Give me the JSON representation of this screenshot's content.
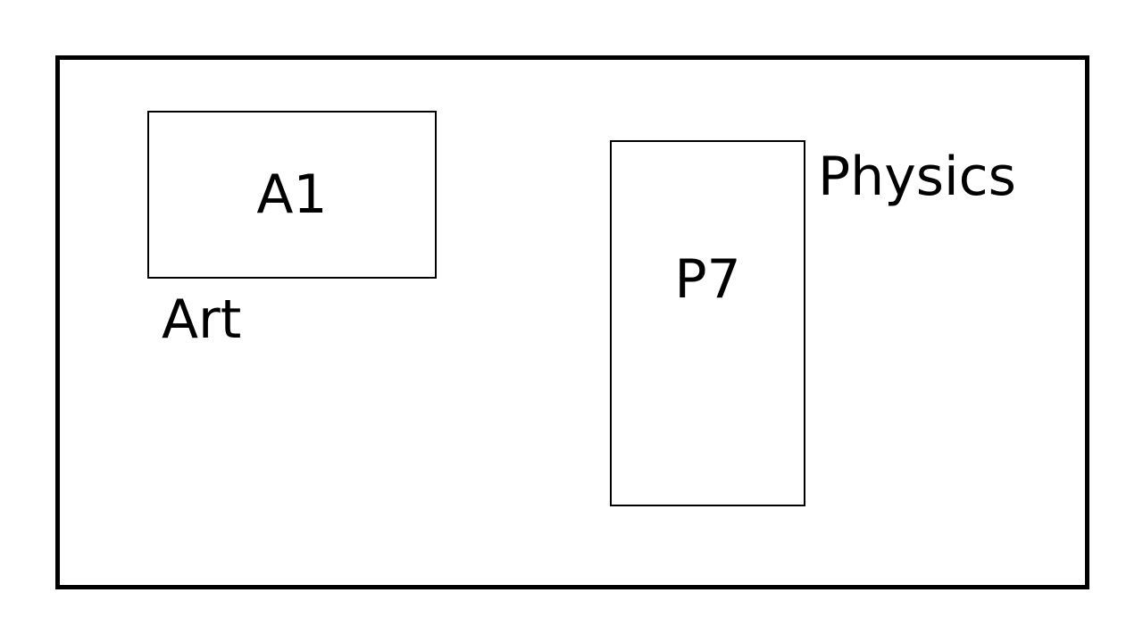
{
  "rooms": [
    {
      "code": "A1",
      "label": "Art"
    },
    {
      "code": "P7",
      "label": "Physics"
    }
  ],
  "colors": {
    "background": "#ffffff",
    "stroke": "#000000",
    "text": "#000000"
  }
}
